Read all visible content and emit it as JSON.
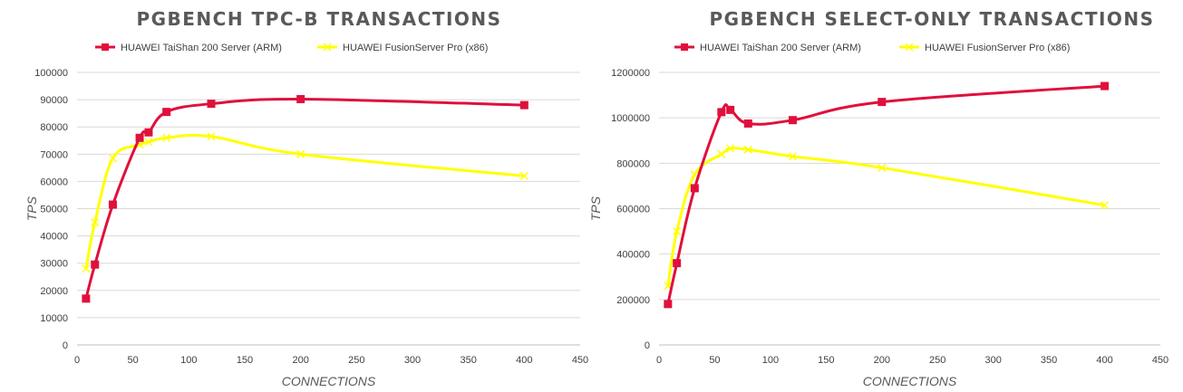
{
  "chart_data": [
    {
      "type": "line",
      "title": "PGBENCH TPC-B TRANSACTIONS",
      "xlabel": "CONNECTIONS",
      "ylabel": "TPS",
      "xlim": [
        0,
        450
      ],
      "ylim": [
        0,
        100000
      ],
      "xticks": [
        "0",
        "50",
        "100",
        "150",
        "200",
        "250",
        "300",
        "350",
        "400",
        "450"
      ],
      "yticks": [
        "0",
        "10000",
        "20000",
        "30000",
        "40000",
        "50000",
        "60000",
        "70000",
        "80000",
        "90000",
        "100000"
      ],
      "grid": "horizontal",
      "legend_position": "top",
      "series": [
        {
          "name": "HUAWEI TaiShan 200 Server (ARM)",
          "color": "#e0103c",
          "marker": "square",
          "x": [
            8,
            16,
            32,
            56,
            64,
            80,
            120,
            200,
            400
          ],
          "y": [
            17000,
            29500,
            51500,
            76000,
            78000,
            85500,
            88500,
            90200,
            88000
          ]
        },
        {
          "name": "HUAWEI FusionServer Pro (x86)",
          "color": "#ffff00",
          "marker": "x",
          "x": [
            8,
            16,
            32,
            56,
            64,
            80,
            120,
            200,
            400
          ],
          "y": [
            28000,
            45000,
            68500,
            73500,
            74500,
            76000,
            76500,
            70000,
            62000
          ]
        }
      ]
    },
    {
      "type": "line",
      "title": "PGBENCH SELECT-ONLY TRANSACTIONS",
      "xlabel": "CONNECTIONS",
      "ylabel": "TPS",
      "xlim": [
        0,
        450
      ],
      "ylim": [
        0,
        1200000
      ],
      "xticks": [
        "0",
        "50",
        "100",
        "150",
        "200",
        "250",
        "300",
        "350",
        "400",
        "450"
      ],
      "yticks": [
        "0",
        "200000",
        "400000",
        "600000",
        "800000",
        "1000000",
        "1200000"
      ],
      "grid": "horizontal",
      "legend_position": "top",
      "series": [
        {
          "name": "HUAWEI TaiShan 200 Server (ARM)",
          "color": "#e0103c",
          "marker": "square",
          "x": [
            8,
            16,
            32,
            56,
            64,
            80,
            120,
            200,
            400
          ],
          "y": [
            180000,
            360000,
            690000,
            1025000,
            1035000,
            975000,
            990000,
            1070000,
            1140000
          ]
        },
        {
          "name": "HUAWEI FusionServer Pro (x86)",
          "color": "#ffff00",
          "marker": "x",
          "x": [
            8,
            16,
            32,
            56,
            64,
            80,
            120,
            200,
            400
          ],
          "y": [
            260000,
            500000,
            750000,
            840000,
            865000,
            860000,
            830000,
            780000,
            615000
          ]
        }
      ]
    }
  ]
}
